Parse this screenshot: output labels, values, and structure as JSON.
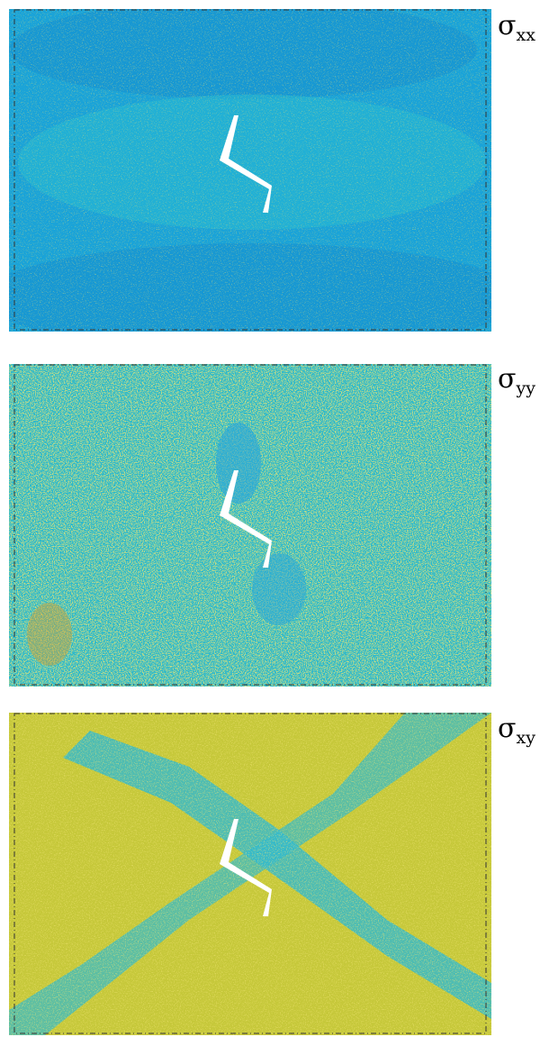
{
  "figure": {
    "panels": [
      {
        "id": "sxx",
        "label_symbol": "σ",
        "label_subscript": "xx",
        "base_color": "#1aa3d8",
        "secondary_color": "#27b9d3",
        "speckle_color": "#d6c72a",
        "dark_color": "#1688c8"
      },
      {
        "id": "syy",
        "label_symbol": "σ",
        "label_subscript": "yy",
        "base_color": "#28b8cf",
        "secondary_color": "#9cc07a",
        "speckle_color": "#d8c72c",
        "dark_color": "#d5a02a"
      },
      {
        "id": "sxy",
        "label_symbol": "σ",
        "label_subscript": "xy",
        "base_color": "#c6c83a",
        "secondary_color": "#2eb9d2",
        "speckle_color": "#dcc82a",
        "dark_color": "#2a9fd6"
      }
    ]
  }
}
